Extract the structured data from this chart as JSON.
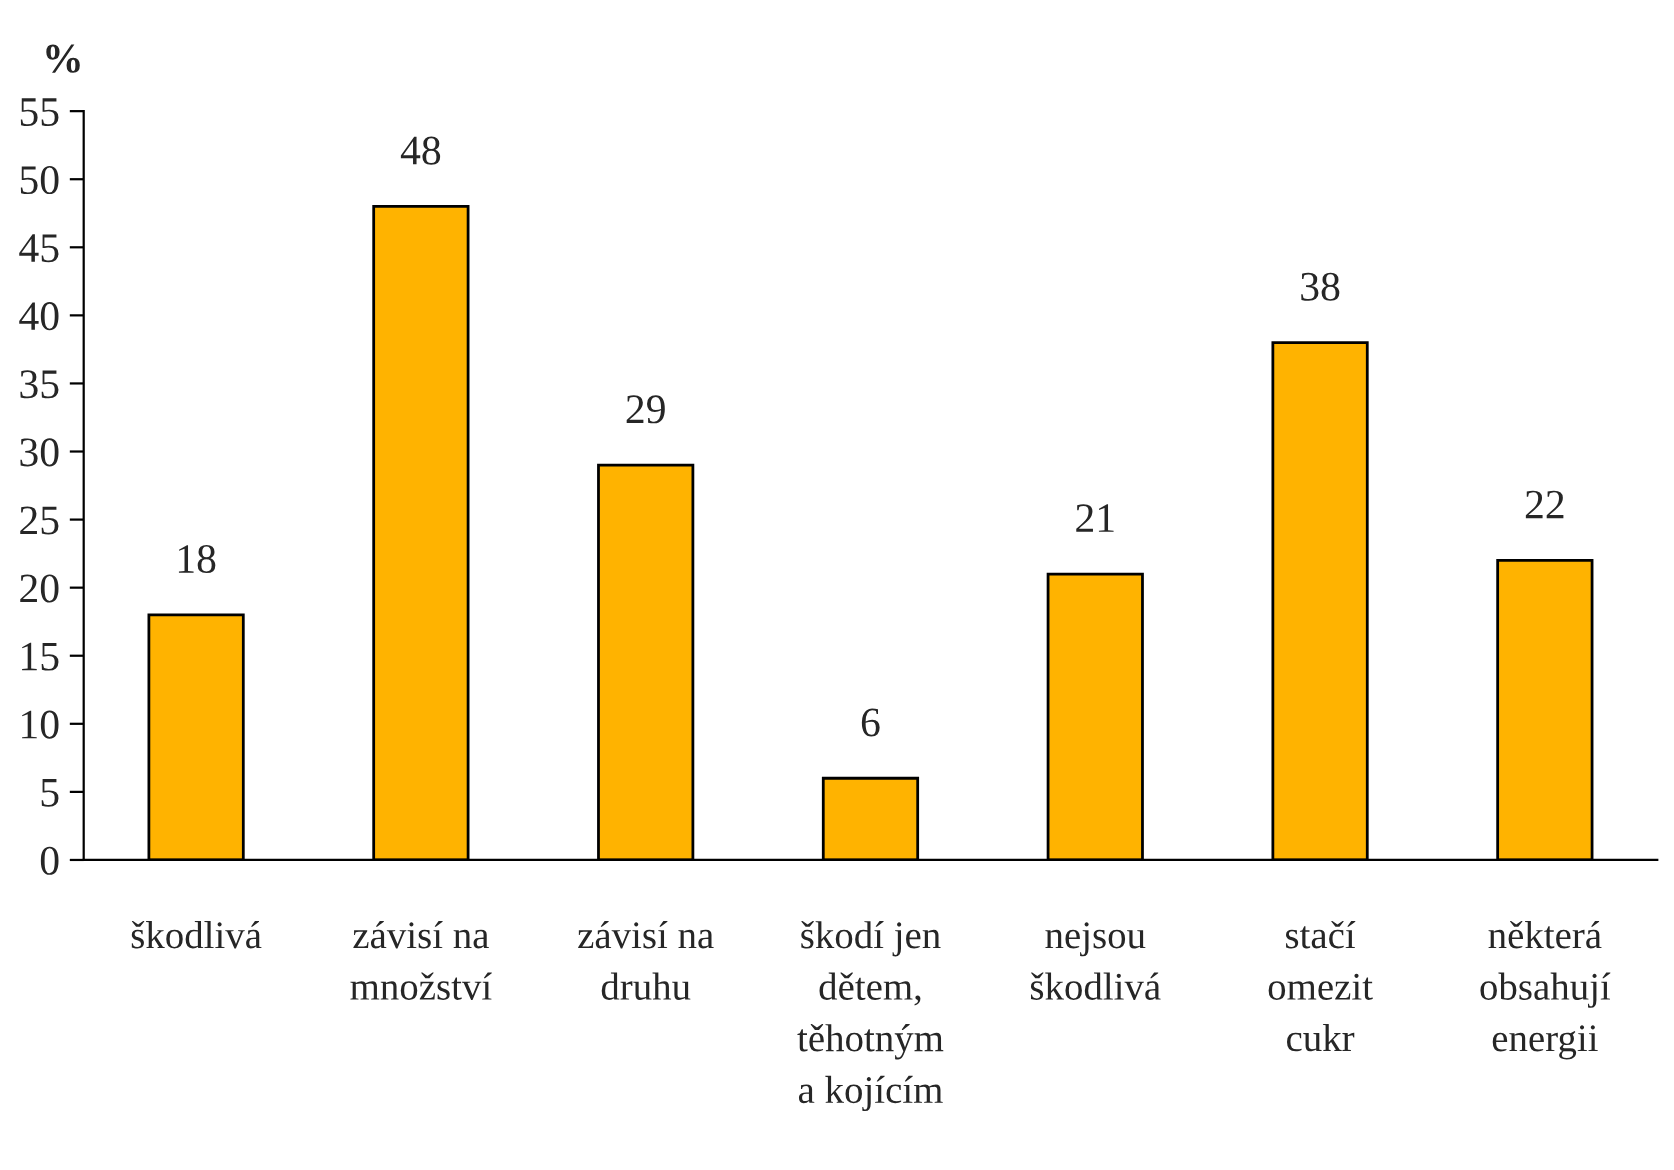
{
  "chart_data": {
    "type": "bar",
    "ylabel": "%",
    "categories": [
      "škodlivá",
      "závisí na\nmnožství",
      "závisí na\ndruhu",
      "škodí jen\ndětem,\ntěhotným\na kojícím",
      "nejsou\nškodlivá",
      "stačí\nomezit\ncukr",
      "některá\nobsahují\nenergii"
    ],
    "values": [
      18,
      48,
      29,
      6,
      21,
      38,
      22
    ],
    "color": "#ffb300",
    "ylim": [
      0,
      55
    ],
    "yticks": [
      0,
      5,
      10,
      15,
      20,
      25,
      30,
      35,
      40,
      45,
      50,
      55
    ],
    "data_labels": true,
    "grid": false,
    "legend": false
  }
}
